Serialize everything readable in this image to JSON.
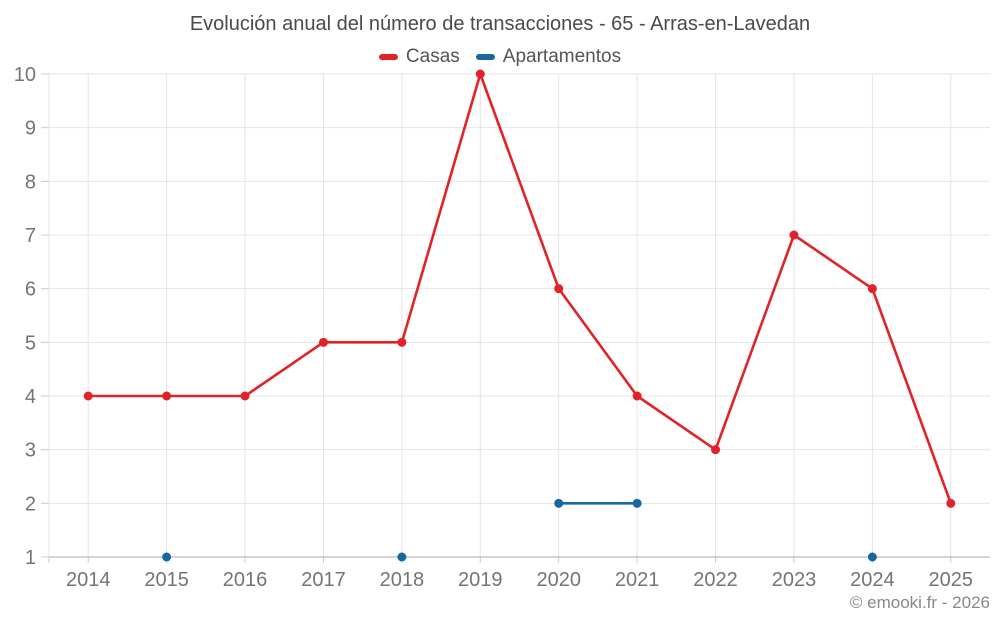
{
  "chart_data": {
    "type": "line",
    "title": "Evolución anual del número de transacciones - 65 - Arras-en-Lavedan",
    "categories": [
      "2014",
      "2015",
      "2016",
      "2017",
      "2018",
      "2019",
      "2020",
      "2021",
      "2022",
      "2023",
      "2024",
      "2025"
    ],
    "series": [
      {
        "name": "Casas",
        "color": "#e02329",
        "values": [
          4,
          4,
          4,
          5,
          5,
          10,
          6,
          4,
          3,
          7,
          6,
          2
        ]
      },
      {
        "name": "Apartamentos",
        "color": "#16699e",
        "values": [
          null,
          1,
          null,
          null,
          1,
          null,
          2,
          2,
          null,
          null,
          1,
          null
        ]
      }
    ],
    "xlabel": "",
    "ylabel": "",
    "ylim": [
      1,
      10
    ],
    "yticks": [
      1,
      2,
      3,
      4,
      5,
      6,
      7,
      8,
      9,
      10
    ],
    "grid": true,
    "legend_position": "top"
  },
  "watermark": "© emooki.fr - 2026",
  "colors": {
    "background": "#ffffff",
    "grid": "#e4e4e4",
    "axis_line": "#ababab",
    "tick": "#cccccc",
    "axis_label": "#747474",
    "title": "#4a4a4a",
    "legend_label": "#555555",
    "watermark": "#878787"
  }
}
